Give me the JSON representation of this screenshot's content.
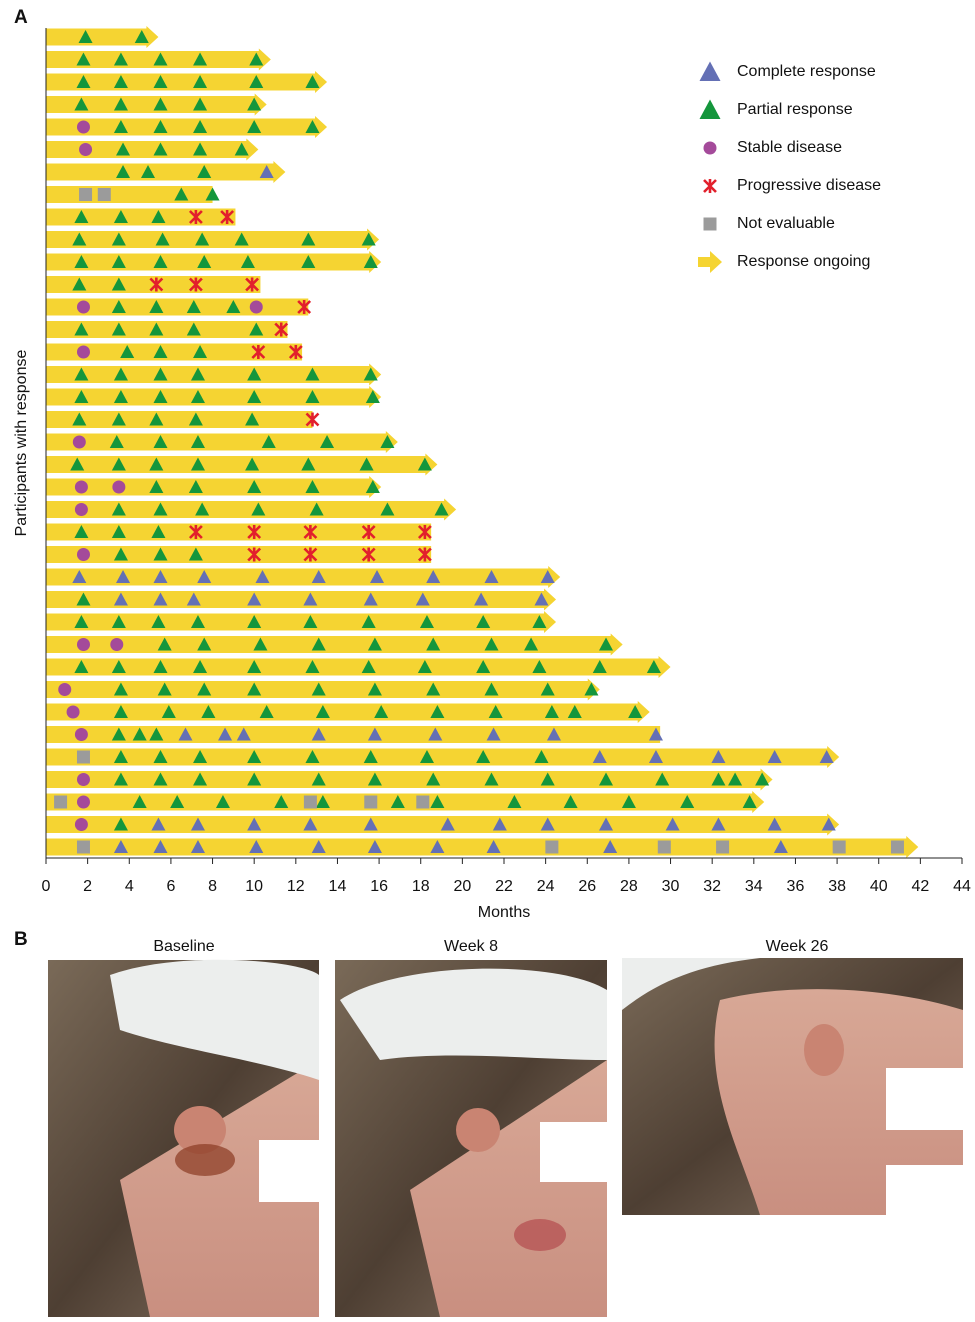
{
  "chart_data": {
    "type": "swimmer",
    "panel_labels": [
      "A",
      "B"
    ],
    "xlabel": "Months",
    "ylabel": "Participants with response",
    "xlim": [
      0,
      44
    ],
    "xticks": [
      0,
      2,
      4,
      6,
      8,
      10,
      12,
      14,
      16,
      18,
      20,
      22,
      24,
      26,
      28,
      30,
      32,
      34,
      36,
      38,
      40,
      42,
      44
    ],
    "legend": [
      {
        "name": "Complete response",
        "color": "#6470b5",
        "marker": "triangle"
      },
      {
        "name": "Partial response",
        "color": "#14963c",
        "marker": "triangle"
      },
      {
        "name": "Stable disease",
        "color": "#a44a9a",
        "marker": "circle"
      },
      {
        "name": "Progressive disease",
        "color": "#e2202c",
        "marker": "cross"
      },
      {
        "name": "Not evaluable",
        "color": "#9b9b9b",
        "marker": "square"
      },
      {
        "name": "Response ongoing",
        "color": "#f5d432",
        "marker": "arrow"
      }
    ],
    "rows": [
      {
        "duration": 5.4,
        "ongoing": true,
        "events": [
          [],
          [
            1.9,
            4.6
          ],
          [],
          [],
          []
        ]
      },
      {
        "duration": 10.8,
        "ongoing": true,
        "events": [
          [],
          [
            1.8,
            3.6,
            5.5,
            7.4,
            10.1
          ],
          [],
          [],
          []
        ]
      },
      {
        "duration": 13.5,
        "ongoing": true,
        "events": [
          [],
          [
            1.8,
            3.6,
            5.5,
            7.4,
            10.1,
            12.8
          ],
          [],
          [],
          []
        ]
      },
      {
        "duration": 10.6,
        "ongoing": true,
        "events": [
          [],
          [
            1.7,
            3.6,
            5.5,
            7.4,
            10.0
          ],
          [],
          [],
          []
        ]
      },
      {
        "duration": 13.5,
        "ongoing": true,
        "events": [
          [],
          [
            3.6,
            5.5,
            7.4,
            10.0,
            12.8
          ],
          [
            1.8
          ],
          [],
          []
        ]
      },
      {
        "duration": 10.2,
        "ongoing": true,
        "events": [
          [],
          [
            3.7,
            5.5,
            7.4,
            9.4
          ],
          [
            1.9
          ],
          [],
          []
        ]
      },
      {
        "duration": 11.5,
        "ongoing": true,
        "events": [
          [
            10.6
          ],
          [
            3.7,
            4.9,
            7.6
          ],
          [],
          [],
          []
        ]
      },
      {
        "duration": 8.0,
        "ongoing": false,
        "events": [
          [],
          [
            6.5,
            8.0
          ],
          [],
          [],
          [
            1.9,
            2.8
          ]
        ]
      },
      {
        "duration": 9.1,
        "ongoing": false,
        "events": [
          [],
          [
            1.7,
            3.6,
            5.4
          ],
          [],
          [
            7.2,
            8.7
          ],
          []
        ]
      },
      {
        "duration": 16.0,
        "ongoing": true,
        "events": [
          [],
          [
            1.6,
            3.5,
            5.6,
            7.5,
            9.4,
            12.6,
            15.5
          ],
          [],
          [],
          []
        ]
      },
      {
        "duration": 16.1,
        "ongoing": true,
        "events": [
          [],
          [
            1.7,
            3.5,
            5.5,
            7.6,
            9.7,
            12.6,
            15.6
          ],
          [],
          [],
          []
        ]
      },
      {
        "duration": 10.3,
        "ongoing": false,
        "events": [
          [],
          [
            1.6,
            3.5
          ],
          [],
          [
            5.3,
            7.2,
            9.9
          ],
          []
        ]
      },
      {
        "duration": 12.6,
        "ongoing": false,
        "events": [
          [],
          [
            3.5,
            5.3,
            7.1,
            9.0
          ],
          [
            1.8,
            10.1
          ],
          [
            12.4
          ],
          []
        ]
      },
      {
        "duration": 11.6,
        "ongoing": false,
        "events": [
          [],
          [
            1.7,
            3.5,
            5.3,
            7.1,
            10.1
          ],
          [],
          [
            11.3
          ],
          []
        ]
      },
      {
        "duration": 12.3,
        "ongoing": false,
        "events": [
          [],
          [
            3.9,
            5.5,
            7.4
          ],
          [
            1.8
          ],
          [
            10.2,
            12.0
          ],
          []
        ]
      },
      {
        "duration": 16.1,
        "ongoing": true,
        "events": [
          [],
          [
            1.7,
            3.6,
            5.5,
            7.3,
            10.0,
            12.8,
            15.6
          ],
          [],
          [],
          []
        ]
      },
      {
        "duration": 16.1,
        "ongoing": true,
        "events": [
          [],
          [
            1.7,
            3.6,
            5.5,
            7.3,
            10.0,
            12.8,
            15.7
          ],
          [],
          [],
          []
        ]
      },
      {
        "duration": 12.8,
        "ongoing": false,
        "events": [
          [],
          [
            1.6,
            3.5,
            5.3,
            7.2,
            9.9
          ],
          [],
          [
            12.8
          ],
          []
        ]
      },
      {
        "duration": 16.9,
        "ongoing": true,
        "events": [
          [],
          [
            3.4,
            5.5,
            7.3,
            10.7,
            13.5,
            16.4
          ],
          [
            1.6
          ],
          [],
          []
        ]
      },
      {
        "duration": 18.8,
        "ongoing": true,
        "events": [
          [],
          [
            1.5,
            3.5,
            5.3,
            7.3,
            9.9,
            12.6,
            15.4,
            18.2
          ],
          [],
          [],
          []
        ]
      },
      {
        "duration": 16.1,
        "ongoing": true,
        "events": [
          [],
          [
            5.3,
            7.2,
            10.0,
            12.8,
            15.7
          ],
          [
            1.7,
            3.5
          ],
          [],
          []
        ]
      },
      {
        "duration": 19.7,
        "ongoing": true,
        "events": [
          [],
          [
            3.5,
            5.5,
            7.5,
            10.2,
            13.0,
            16.4,
            19.0
          ],
          [
            1.7
          ],
          [],
          []
        ]
      },
      {
        "duration": 18.5,
        "ongoing": false,
        "events": [
          [],
          [
            1.7,
            3.5,
            5.4
          ],
          [],
          [
            7.2,
            10.0,
            12.7,
            15.5,
            18.2
          ],
          []
        ]
      },
      {
        "duration": 18.5,
        "ongoing": false,
        "events": [
          [],
          [
            3.6,
            5.5,
            7.2
          ],
          [
            1.8
          ],
          [
            10.0,
            12.7,
            15.5,
            18.2
          ],
          []
        ]
      },
      {
        "duration": 24.7,
        "ongoing": true,
        "events": [
          [
            1.6,
            3.7,
            5.5,
            7.6,
            10.4,
            13.1,
            15.9,
            18.6,
            21.4,
            24.1
          ],
          [],
          [],
          [],
          []
        ]
      },
      {
        "duration": 24.5,
        "ongoing": true,
        "events": [
          [
            3.6,
            5.5,
            7.1,
            10.0,
            12.7,
            15.6,
            18.1,
            20.9,
            23.8
          ],
          [
            1.8
          ],
          [],
          [],
          []
        ]
      },
      {
        "duration": 24.5,
        "ongoing": true,
        "events": [
          [],
          [
            1.7,
            3.5,
            5.4,
            7.3,
            10.0,
            12.7,
            15.5,
            18.3,
            21.0,
            23.7
          ],
          [],
          [],
          []
        ]
      },
      {
        "duration": 27.7,
        "ongoing": true,
        "events": [
          [],
          [
            5.7,
            7.6,
            10.3,
            13.1,
            15.8,
            18.6,
            21.4,
            23.3,
            26.9
          ],
          [
            1.8,
            3.4
          ],
          [],
          []
        ]
      },
      {
        "duration": 30.0,
        "ongoing": true,
        "events": [
          [],
          [
            1.7,
            3.5,
            5.5,
            7.4,
            10.0,
            12.8,
            15.5,
            18.2,
            21.0,
            23.7,
            26.6,
            29.2
          ],
          [],
          [],
          []
        ]
      },
      {
        "duration": 26.6,
        "ongoing": true,
        "events": [
          [],
          [
            3.6,
            5.7,
            7.6,
            10.0,
            13.1,
            15.8,
            18.6,
            21.4,
            24.1,
            26.2
          ],
          [
            0.9
          ],
          [],
          []
        ]
      },
      {
        "duration": 29.0,
        "ongoing": true,
        "events": [
          [],
          [
            3.6,
            5.9,
            7.8,
            10.6,
            13.3,
            16.1,
            18.8,
            21.6,
            24.3,
            25.4,
            28.3
          ],
          [
            1.3
          ],
          [],
          []
        ]
      },
      {
        "duration": 29.5,
        "ongoing": false,
        "events": [
          [
            6.7,
            8.6,
            9.5,
            13.1,
            15.8,
            18.7,
            21.5,
            24.4,
            29.3
          ],
          [
            3.5,
            4.5,
            5.3
          ],
          [
            1.7
          ],
          [],
          []
        ]
      },
      {
        "duration": 38.1,
        "ongoing": true,
        "events": [
          [
            26.6,
            29.3,
            32.3,
            35.0,
            37.5
          ],
          [
            3.6,
            5.5,
            7.4,
            10.0,
            12.8,
            15.6,
            18.3,
            21.0,
            23.8
          ],
          [],
          [],
          [
            1.8
          ]
        ]
      },
      {
        "duration": 34.9,
        "ongoing": true,
        "events": [
          [],
          [
            3.6,
            5.5,
            7.4,
            10.0,
            13.1,
            15.8,
            18.6,
            21.4,
            24.1,
            26.9,
            29.6,
            32.3,
            33.1,
            34.4
          ],
          [
            1.8
          ],
          [],
          []
        ]
      },
      {
        "duration": 34.5,
        "ongoing": true,
        "events": [
          [],
          [
            4.5,
            6.3,
            8.5,
            11.3,
            13.3,
            16.9,
            18.8,
            22.5,
            25.2,
            28.0,
            30.8,
            33.8
          ],
          [
            1.8
          ],
          [],
          [
            0.7,
            12.7,
            15.6,
            18.1
          ]
        ]
      },
      {
        "duration": 38.1,
        "ongoing": true,
        "events": [
          [
            5.4,
            7.3,
            10.0,
            12.7,
            15.6,
            19.3,
            21.8,
            24.1,
            26.9,
            30.1,
            32.3,
            35.0,
            37.6
          ],
          [
            3.6
          ],
          [
            1.7
          ],
          [],
          []
        ]
      },
      {
        "duration": 41.9,
        "ongoing": true,
        "events": [
          [
            3.6,
            5.5,
            7.3,
            10.1,
            13.1,
            15.8,
            18.8,
            21.5,
            27.1,
            35.3
          ],
          [],
          [],
          [],
          [
            1.8,
            24.3,
            29.7,
            32.5,
            38.1,
            40.9
          ]
        ]
      }
    ],
    "photo_titles": [
      "Baseline",
      "Week 8",
      "Week 26"
    ]
  }
}
